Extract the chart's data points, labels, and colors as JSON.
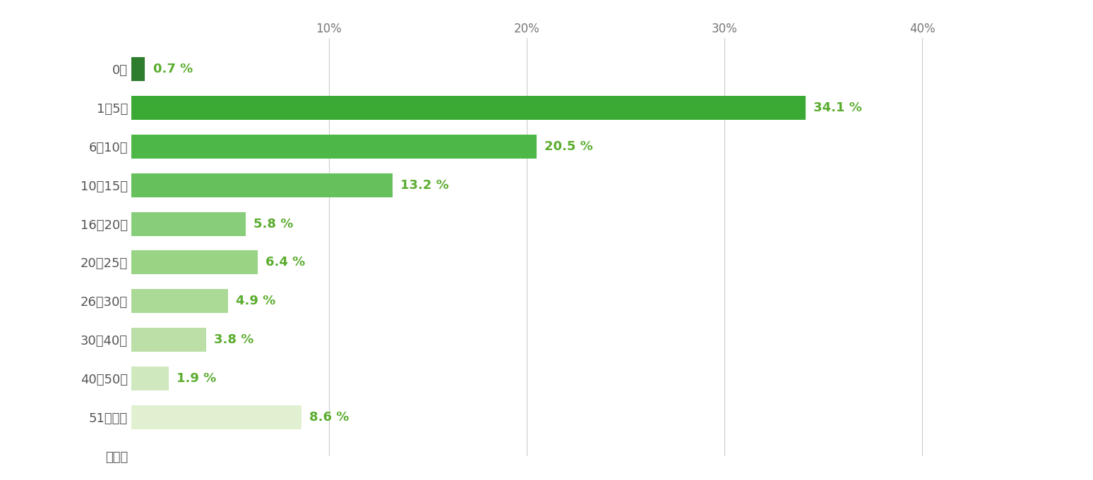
{
  "categories": [
    "0城",
    "1～5城",
    "6～10城",
    "10～15城",
    "16～20城",
    "20～25城",
    "26～30城",
    "30～40城",
    "40～50城",
    "51城以上",
    "無回答"
  ],
  "values": [
    0.7,
    34.1,
    20.5,
    13.2,
    5.8,
    6.4,
    4.9,
    3.8,
    1.9,
    8.6,
    0
  ],
  "bar_colors": [
    "#2e7d2e",
    "#3aaa35",
    "#4db848",
    "#66c15c",
    "#88ce7a",
    "#99d485",
    "#aada96",
    "#bbdfa6",
    "#d0e8be",
    "#e0f0d0",
    "#ffffff"
  ],
  "label_color": "#5aac2e",
  "background_color": "#ffffff",
  "xlim": [
    0,
    42
  ],
  "xtick_values": [
    0,
    10,
    20,
    30,
    40
  ],
  "xtick_labels": [
    "",
    "10%",
    "20%",
    "30%",
    "40%"
  ],
  "grid_color": "#cccccc",
  "bar_height": 0.62,
  "label_fontsize": 13,
  "tick_fontsize": 12,
  "ytick_fontsize": 13,
  "figsize": [
    15.48,
    6.81
  ],
  "dpi": 100
}
